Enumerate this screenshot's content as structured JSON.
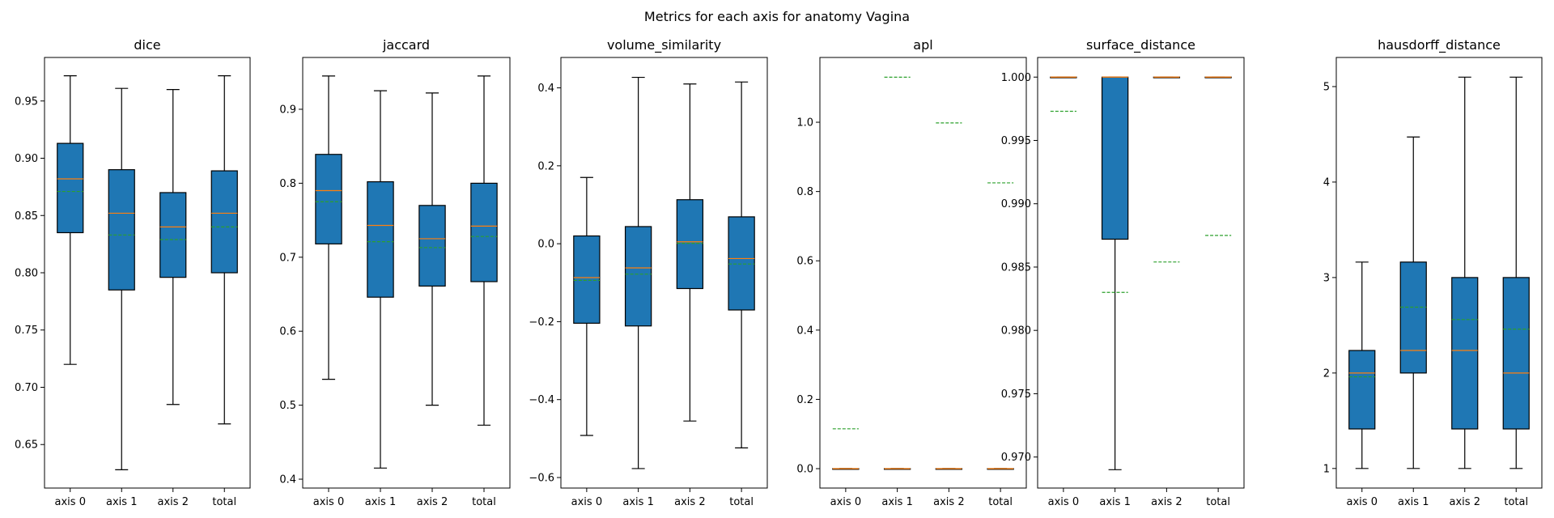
{
  "figure_title": "Metrics for each axis for anatomy Vagina",
  "colors": {
    "box_fill": "#1f77b4",
    "median_line": "#ff7f0e",
    "mean_line": "#2ca02c",
    "edge": "#000000"
  },
  "chart_data": [
    {
      "type": "boxplot",
      "title": "dice",
      "categories": [
        "axis 0",
        "axis 1",
        "axis 2",
        "total"
      ],
      "ylim": [
        0.612,
        0.988
      ],
      "yticks": [
        0.65,
        0.7,
        0.75,
        0.8,
        0.85,
        0.9,
        0.95
      ],
      "ytick_labels": [
        "0.65",
        "0.70",
        "0.75",
        "0.80",
        "0.85",
        "0.90",
        "0.95"
      ],
      "boxes": [
        {
          "whislo": 0.72,
          "q1": 0.835,
          "med": 0.882,
          "q3": 0.913,
          "whishi": 0.972,
          "mean": 0.871
        },
        {
          "whislo": 0.628,
          "q1": 0.785,
          "med": 0.852,
          "q3": 0.89,
          "whishi": 0.961,
          "mean": 0.833
        },
        {
          "whislo": 0.685,
          "q1": 0.796,
          "med": 0.84,
          "q3": 0.87,
          "whishi": 0.96,
          "mean": 0.829
        },
        {
          "whislo": 0.668,
          "q1": 0.8,
          "med": 0.852,
          "q3": 0.889,
          "whishi": 0.972,
          "mean": 0.84
        }
      ]
    },
    {
      "type": "boxplot",
      "title": "jaccard",
      "categories": [
        "axis 0",
        "axis 1",
        "axis 2",
        "total"
      ],
      "ylim": [
        0.388,
        0.97
      ],
      "yticks": [
        0.4,
        0.5,
        0.6,
        0.7,
        0.8,
        0.9
      ],
      "ytick_labels": [
        "0.4",
        "0.5",
        "0.6",
        "0.7",
        "0.8",
        "0.9"
      ],
      "boxes": [
        {
          "whislo": 0.535,
          "q1": 0.718,
          "med": 0.79,
          "q3": 0.839,
          "whishi": 0.945,
          "mean": 0.775
        },
        {
          "whislo": 0.415,
          "q1": 0.646,
          "med": 0.743,
          "q3": 0.802,
          "whishi": 0.925,
          "mean": 0.721
        },
        {
          "whislo": 0.5,
          "q1": 0.661,
          "med": 0.725,
          "q3": 0.77,
          "whishi": 0.922,
          "mean": 0.713
        },
        {
          "whislo": 0.473,
          "q1": 0.667,
          "med": 0.742,
          "q3": 0.8,
          "whishi": 0.945,
          "mean": 0.728
        }
      ]
    },
    {
      "type": "boxplot",
      "title": "volume_similarity",
      "categories": [
        "axis 0",
        "axis 1",
        "axis 2",
        "total"
      ],
      "ylim": [
        -0.627,
        0.478
      ],
      "yticks": [
        -0.6,
        -0.4,
        -0.2,
        0.0,
        0.2,
        0.4
      ],
      "ytick_labels": [
        "−0.6",
        "−0.4",
        "−0.2",
        "0.0",
        "0.2",
        "0.4"
      ],
      "boxes": [
        {
          "whislo": -0.492,
          "q1": -0.204,
          "med": -0.087,
          "q3": 0.02,
          "whishi": 0.17,
          "mean": -0.094
        },
        {
          "whislo": -0.577,
          "q1": -0.211,
          "med": -0.062,
          "q3": 0.044,
          "whishi": 0.427,
          "mean": -0.078
        },
        {
          "whislo": -0.455,
          "q1": -0.115,
          "med": 0.005,
          "q3": 0.113,
          "whishi": 0.41,
          "mean": 0.001
        },
        {
          "whislo": -0.524,
          "q1": -0.17,
          "med": -0.038,
          "q3": 0.069,
          "whishi": 0.415,
          "mean": -0.052
        }
      ]
    },
    {
      "type": "boxplot",
      "title": "apl",
      "categories": [
        "axis 0",
        "axis 1",
        "axis 2",
        "total"
      ],
      "ylim": [
        -0.056,
        1.187
      ],
      "yticks": [
        0.0,
        0.2,
        0.4,
        0.6,
        0.8,
        1.0
      ],
      "ytick_labels": [
        "0.0",
        "0.2",
        "0.4",
        "0.6",
        "0.8",
        "1.0"
      ],
      "boxes": [
        {
          "whislo": 0.0,
          "q1": 0.0,
          "med": 0.0,
          "q3": 0.0,
          "whishi": 0.0,
          "mean": 0.115
        },
        {
          "whislo": 0.0,
          "q1": 0.0,
          "med": 0.0,
          "q3": 0.0,
          "whishi": 0.0,
          "mean": 1.13
        },
        {
          "whislo": 0.0,
          "q1": 0.0,
          "med": 0.0,
          "q3": 0.0,
          "whishi": 0.0,
          "mean": 0.998
        },
        {
          "whislo": 0.0,
          "q1": 0.0,
          "med": 0.0,
          "q3": 0.0,
          "whishi": 0.0,
          "mean": 0.825
        }
      ]
    },
    {
      "type": "boxplot",
      "title": "surface_distance",
      "categories": [
        "axis 0",
        "axis 1",
        "axis 2",
        "total"
      ],
      "ylim": [
        0.96755,
        1.00155
      ],
      "yticks": [
        0.97,
        0.975,
        0.98,
        0.985,
        0.99,
        0.995,
        1.0
      ],
      "ytick_labels": [
        "0.970",
        "0.975",
        "0.980",
        "0.985",
        "0.990",
        "0.995",
        "1.000"
      ],
      "boxes": [
        {
          "whislo": 1.0,
          "q1": 1.0,
          "med": 1.0,
          "q3": 1.0,
          "whishi": 1.0,
          "mean": 0.9973
        },
        {
          "whislo": 0.969,
          "q1": 0.9872,
          "med": 1.0,
          "q3": 1.0,
          "whishi": 1.0,
          "mean": 0.983
        },
        {
          "whislo": 1.0,
          "q1": 1.0,
          "med": 1.0,
          "q3": 1.0,
          "whishi": 1.0,
          "mean": 0.9854
        },
        {
          "whislo": 1.0,
          "q1": 1.0,
          "med": 1.0,
          "q3": 1.0,
          "whishi": 1.0,
          "mean": 0.9875
        }
      ]
    },
    {
      "type": "boxplot",
      "title": "hausdorff_distance",
      "categories": [
        "axis 0",
        "axis 1",
        "axis 2",
        "total"
      ],
      "ylim": [
        0.795,
        5.305
      ],
      "yticks": [
        1,
        2,
        3,
        4,
        5
      ],
      "ytick_labels": [
        "1",
        "2",
        "3",
        "4",
        "5"
      ],
      "boxes": [
        {
          "whislo": 1.0,
          "q1": 1.414,
          "med": 2.0,
          "q3": 2.236,
          "whishi": 3.162,
          "mean": 1.96
        },
        {
          "whislo": 1.0,
          "q1": 2.0,
          "med": 2.236,
          "q3": 3.162,
          "whishi": 4.472,
          "mean": 2.69
        },
        {
          "whislo": 1.0,
          "q1": 1.414,
          "med": 2.236,
          "q3": 3.0,
          "whishi": 5.099,
          "mean": 2.56
        },
        {
          "whislo": 1.0,
          "q1": 1.414,
          "med": 2.0,
          "q3": 3.0,
          "whishi": 5.099,
          "mean": 2.46
        }
      ]
    }
  ]
}
